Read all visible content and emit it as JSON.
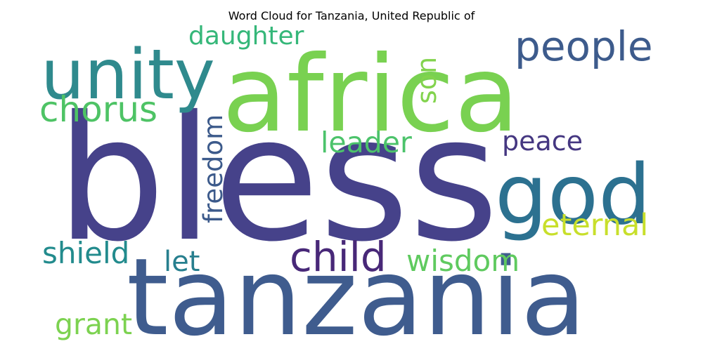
{
  "chart_data": {
    "type": "wordcloud",
    "title": "Word Cloud for Tanzania, United Republic of",
    "words": [
      {
        "text": "bless",
        "weight": 100,
        "color": "#46428a",
        "orientation": "horizontal"
      },
      {
        "text": "tanzania",
        "weight": 82,
        "color": "#3f5c8e",
        "orientation": "horizontal"
      },
      {
        "text": "africa",
        "weight": 72,
        "color": "#79d151",
        "orientation": "horizontal"
      },
      {
        "text": "god",
        "weight": 55,
        "color": "#2c7190",
        "orientation": "horizontal"
      },
      {
        "text": "unity",
        "weight": 50,
        "color": "#2f8a8d",
        "orientation": "horizontal"
      },
      {
        "text": "people",
        "weight": 33,
        "color": "#3d5b8c",
        "orientation": "horizontal"
      },
      {
        "text": "child",
        "weight": 33,
        "color": "#482878",
        "orientation": "horizontal"
      },
      {
        "text": "chorus",
        "weight": 30,
        "color": "#4ec365",
        "orientation": "horizontal"
      },
      {
        "text": "freedom",
        "weight": 27,
        "color": "#3c5a8b",
        "orientation": "vertical"
      },
      {
        "text": "wisdom",
        "weight": 27,
        "color": "#5fca5f",
        "orientation": "horizontal"
      },
      {
        "text": "eternal",
        "weight": 27,
        "color": "#c8df2b",
        "orientation": "horizontal"
      },
      {
        "text": "shield",
        "weight": 26,
        "color": "#228b8d",
        "orientation": "horizontal"
      },
      {
        "text": "grant",
        "weight": 26,
        "color": "#7cd250",
        "orientation": "horizontal"
      },
      {
        "text": "leader",
        "weight": 25,
        "color": "#4cc36b",
        "orientation": "horizontal"
      },
      {
        "text": "daughter",
        "weight": 24,
        "color": "#35b779",
        "orientation": "horizontal"
      },
      {
        "text": "son",
        "weight": 24,
        "color": "#82d34d",
        "orientation": "vertical"
      },
      {
        "text": "peace",
        "weight": 24,
        "color": "#453781",
        "orientation": "horizontal"
      },
      {
        "text": "let",
        "weight": 24,
        "color": "#277f8e",
        "orientation": "horizontal"
      }
    ]
  }
}
